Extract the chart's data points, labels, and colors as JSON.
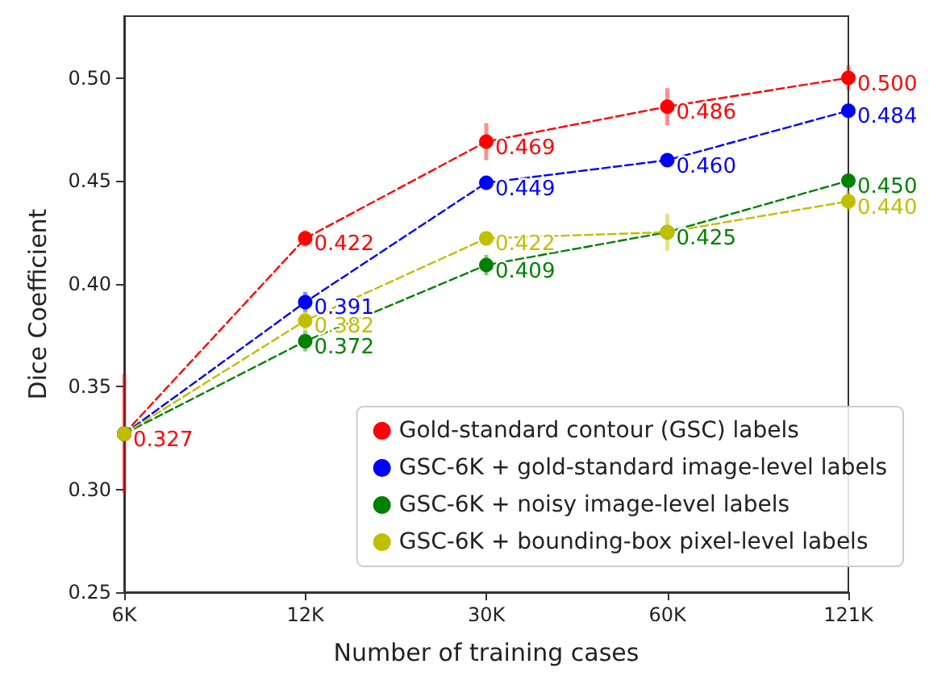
{
  "chart_data": {
    "type": "line",
    "xlabel": "Number of training cases",
    "ylabel": "Dice Coefficient",
    "categories": [
      "6K",
      "12K",
      "30K",
      "60K",
      "121K"
    ],
    "series": [
      {
        "name": "Gold-standard contour (GSC) labels",
        "color": "#ff0000",
        "values": [
          0.327,
          0.422,
          0.469,
          0.486,
          0.5
        ],
        "value_labels": [
          "0.327",
          "0.422",
          "0.469",
          "0.486",
          "0.500"
        ],
        "errors": [
          0.029,
          0.004,
          0.009,
          0.009,
          0.006
        ]
      },
      {
        "name": "GSC-6K + gold-standard image-level labels",
        "color": "#0000ff",
        "values": [
          0.327,
          0.391,
          0.449,
          0.46,
          0.484
        ],
        "value_labels": [
          null,
          "0.391",
          "0.449",
          "0.460",
          "0.484"
        ],
        "errors": [
          null,
          0.005,
          0.003,
          0.003,
          0.003
        ]
      },
      {
        "name": "GSC-6K + noisy image-level labels",
        "color": "#008000",
        "values": [
          0.327,
          0.372,
          0.409,
          0.425,
          0.45
        ],
        "value_labels": [
          null,
          "0.372",
          "0.409",
          "0.425",
          "0.450"
        ],
        "errors": [
          null,
          0.005,
          0.005,
          null,
          0.003
        ]
      },
      {
        "name": "GSC-6K + bounding-box pixel-level labels",
        "color": "#bfbf00",
        "values": [
          0.327,
          0.382,
          0.422,
          0.425,
          0.44
        ],
        "value_labels": [
          null,
          "0.382",
          "0.422",
          null,
          "0.440"
        ],
        "errors": [
          null,
          0.005,
          0.003,
          0.009,
          0.005
        ]
      }
    ],
    "ylim": [
      0.25,
      0.53
    ],
    "yticks": [
      0.25,
      {
        "value": 0.3,
        "label": "0.30"
      },
      0.35,
      {
        "value": 0.4,
        "label": "0.40"
      },
      0.45,
      {
        "value": 0.5,
        "label": "0.50"
      }
    ],
    "grid": false,
    "legend": "bottom right",
    "marker": "circle",
    "line_style": "dashed"
  }
}
